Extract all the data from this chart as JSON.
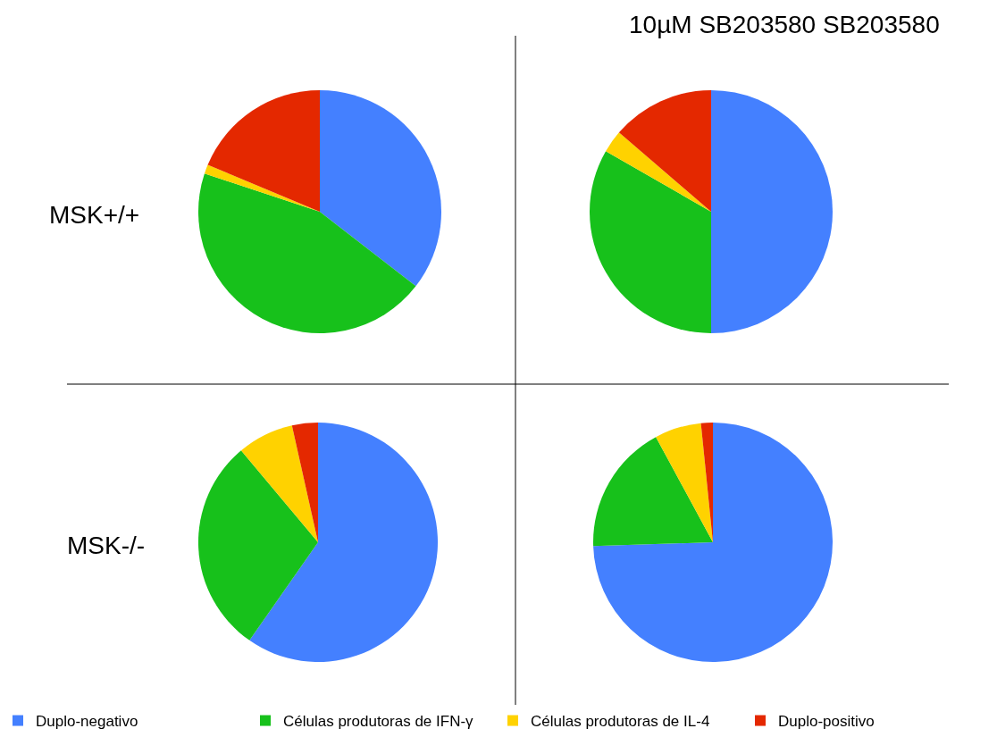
{
  "chart_data": [
    {
      "type": "pie",
      "categories": [
        "Duplo-negativo",
        "Células produtoras de IFN-γ",
        "Células produtoras de IL-4",
        "Duplo-positivo"
      ],
      "values": [
        35.5,
        44.6,
        1.2,
        18.7
      ],
      "colors": [
        "#4480ff",
        "#17c11b",
        "#ffd200",
        "#e42800"
      ],
      "annotations": [
        "MSK+/+"
      ],
      "legend": "bottom"
    },
    {
      "type": "pie",
      "title": "10µM SB203580 SB203580",
      "categories": [
        null,
        null,
        null,
        null
      ],
      "values": [
        50,
        33.3,
        3,
        13.7
      ],
      "colors": [
        "#4480ff",
        "#17c11b",
        "#ffd200",
        "#e42800"
      ]
    },
    {
      "type": "pie",
      "categories": [
        null,
        null,
        null,
        null
      ],
      "values": [
        59.7,
        29.2,
        7.6,
        3.5
      ],
      "colors": [
        "#4480ff",
        "#17c11b",
        "#ffd200",
        "#e42800"
      ],
      "annotations": [
        "MSK-/-"
      ]
    },
    {
      "type": "pie",
      "categories": [
        null,
        null,
        null,
        null
      ],
      "values": [
        74.5,
        17.6,
        6.3,
        1.6
      ],
      "colors": [
        "#4480ff",
        "#17c11b",
        "#ffd200",
        "#e42800"
      ]
    }
  ]
}
